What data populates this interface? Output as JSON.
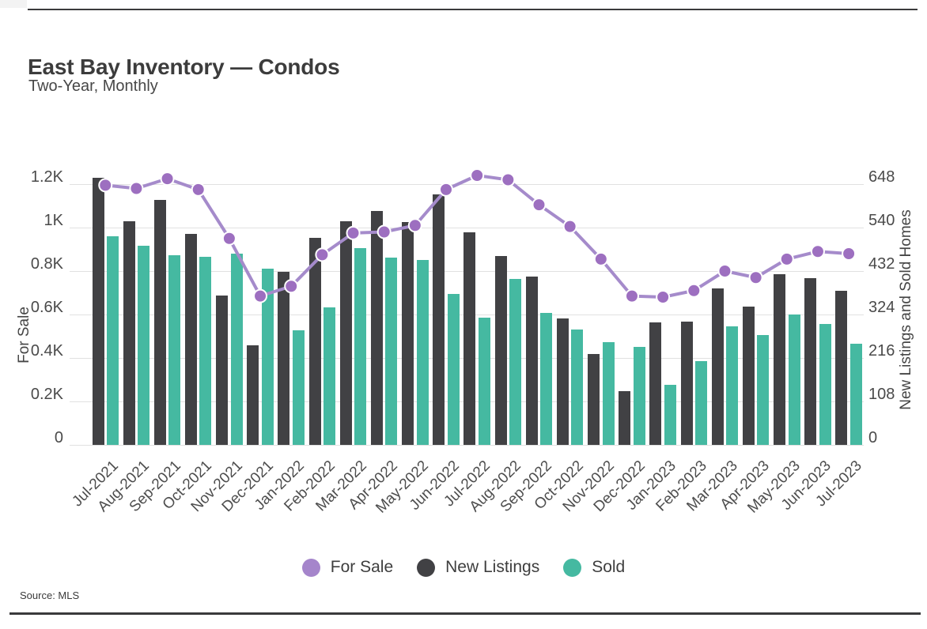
{
  "header": {
    "title": "East Bay Inventory — Condos",
    "subtitle": "Two-Year, Monthly"
  },
  "source": {
    "text": "Source: MLS"
  },
  "legend": {
    "items": [
      {
        "label": "For Sale",
        "color": "#a585cb"
      },
      {
        "label": "New Listings",
        "color": "#414144"
      },
      {
        "label": "Sold",
        "color": "#45b9a1"
      }
    ]
  },
  "chart_data": {
    "type": "combo",
    "title": "East Bay Inventory — Condos",
    "subtitle": "Two-Year, Monthly",
    "grid": "horizontal",
    "legend_position": "bottom",
    "categories": [
      "Jul-2021",
      "Aug-2021",
      "Sep-2021",
      "Oct-2021",
      "Nov-2021",
      "Dec-2021",
      "Jan-2022",
      "Feb-2022",
      "Mar-2022",
      "Apr-2022",
      "May-2022",
      "Jun-2022",
      "Jul-2022",
      "Aug-2022",
      "Sep-2022",
      "Oct-2022",
      "Nov-2022",
      "Dec-2022",
      "Jan-2023",
      "Feb-2023",
      "Mar-2023",
      "Apr-2023",
      "May-2023",
      "Jun-2023",
      "Jul-2023"
    ],
    "series": [
      {
        "name": "For Sale",
        "type": "line",
        "axis": "left",
        "color": "#9d6fc0",
        "line_color": "#a58bcb",
        "values": [
          1195,
          1180,
          1225,
          1175,
          950,
          685,
          730,
          875,
          975,
          980,
          1010,
          1175,
          1240,
          1220,
          1105,
          1005,
          855,
          685,
          680,
          710,
          800,
          770,
          855,
          890,
          880
        ]
      },
      {
        "name": "New Listings",
        "type": "bar",
        "axis": "right",
        "color": "#414144",
        "values": [
          664,
          556,
          609,
          524,
          371,
          248,
          431,
          514,
          556,
          581,
          554,
          622,
          528,
          469,
          418,
          314,
          226,
          134,
          305,
          306,
          389,
          344,
          424,
          414,
          383
        ]
      },
      {
        "name": "Sold",
        "type": "bar",
        "axis": "right",
        "color": "#45b9a1",
        "values": [
          518,
          495,
          471,
          467,
          475,
          438,
          285,
          342,
          489,
          465,
          459,
          375,
          316,
          412,
          328,
          287,
          255,
          243,
          149,
          208,
          295,
          273,
          324,
          300,
          251
        ]
      }
    ],
    "axes": {
      "left": {
        "label": "For Sale",
        "max": 1200,
        "ticks": [
          "0",
          "0.2K",
          "0.4K",
          "0.6K",
          "0.8K",
          "1K",
          "1.2K"
        ]
      },
      "right": {
        "label": "New Listings and Sold Homes",
        "max": 648,
        "ticks": [
          "0",
          "108",
          "216",
          "324",
          "432",
          "540",
          "648"
        ]
      }
    }
  }
}
